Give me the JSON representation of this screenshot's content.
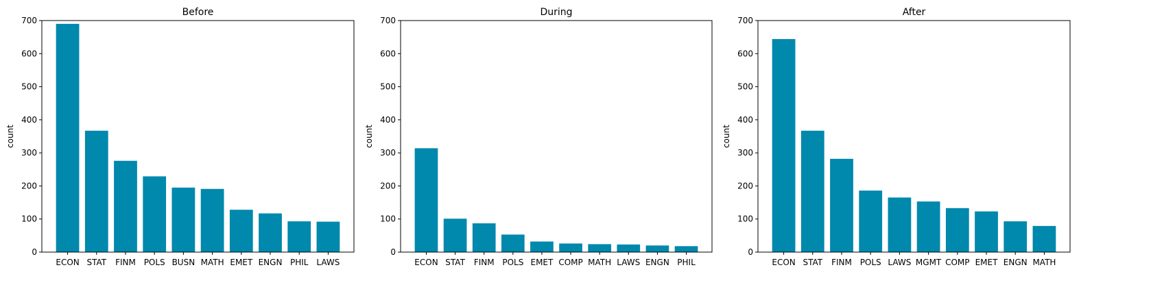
{
  "chart_data": [
    {
      "type": "bar",
      "title": "Before",
      "ylabel": "count",
      "xlabel": "",
      "ylim": [
        0,
        700
      ],
      "yticks": [
        0,
        100,
        200,
        300,
        400,
        500,
        600,
        700
      ],
      "bar_color": "#0088ad",
      "grid": false,
      "categories": [
        "ECON",
        "STAT",
        "FINM",
        "POLS",
        "BUSN",
        "MATH",
        "EMET",
        "ENGN",
        "PHIL",
        "LAWS"
      ],
      "values": [
        690,
        367,
        276,
        229,
        195,
        191,
        128,
        117,
        93,
        92
      ]
    },
    {
      "type": "bar",
      "title": "During",
      "ylabel": "count",
      "xlabel": "",
      "ylim": [
        0,
        700
      ],
      "yticks": [
        0,
        100,
        200,
        300,
        400,
        500,
        600,
        700
      ],
      "bar_color": "#0088ad",
      "grid": false,
      "categories": [
        "ECON",
        "STAT",
        "FINM",
        "POLS",
        "EMET",
        "COMP",
        "MATH",
        "LAWS",
        "ENGN",
        "PHIL"
      ],
      "values": [
        314,
        101,
        87,
        53,
        32,
        26,
        24,
        23,
        20,
        18
      ]
    },
    {
      "type": "bar",
      "title": "After",
      "ylabel": "count",
      "xlabel": "",
      "ylim": [
        0,
        700
      ],
      "yticks": [
        0,
        100,
        200,
        300,
        400,
        500,
        600,
        700
      ],
      "bar_color": "#0088ad",
      "grid": false,
      "categories": [
        "ECON",
        "STAT",
        "FINM",
        "POLS",
        "LAWS",
        "MGMT",
        "COMP",
        "EMET",
        "ENGN",
        "MATH"
      ],
      "values": [
        644,
        367,
        282,
        186,
        165,
        153,
        133,
        123,
        93,
        79
      ]
    }
  ]
}
